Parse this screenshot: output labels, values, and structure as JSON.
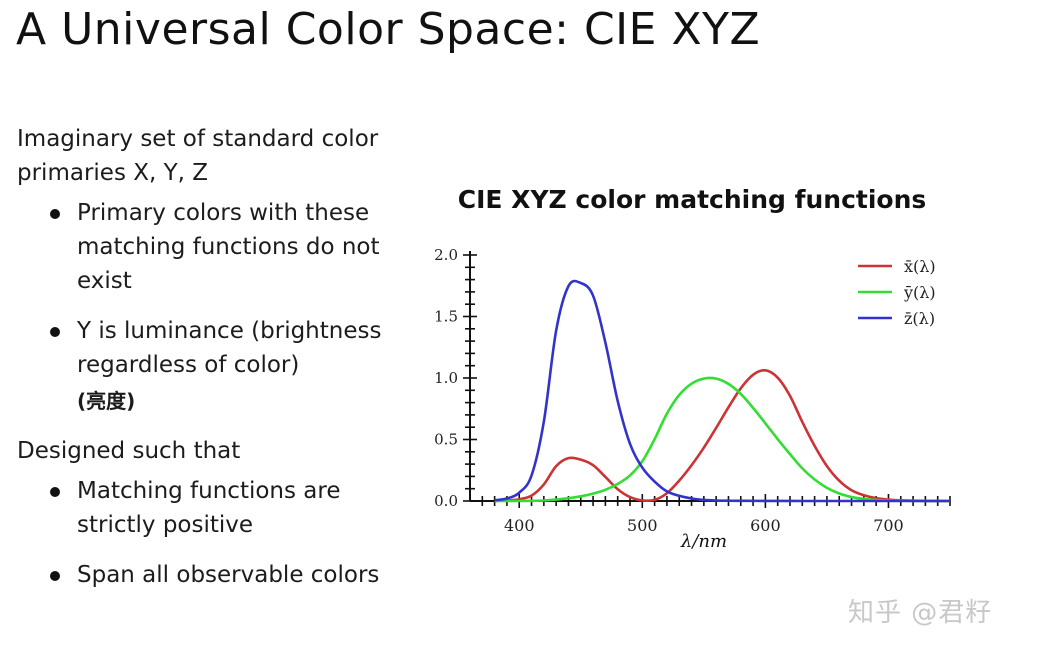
{
  "slide": {
    "title": "A Universal Color Space: CIE XYZ",
    "intro": "Imaginary set of standard color primaries X, Y, Z",
    "bullets_1": [
      {
        "text": "Primary colors with these matching functions do not exist",
        "sub": ""
      },
      {
        "text": "Y is luminance (brightness regardless of color)",
        "sub": "(亮度)"
      }
    ],
    "section_2": "Designed such that",
    "bullets_2": [
      {
        "text": "Matching functions are strictly positive"
      },
      {
        "text": "Span all observable colors"
      }
    ],
    "watermark": "知乎 @君籽"
  },
  "chart_data": {
    "type": "line",
    "title": "CIE XYZ color matching functions",
    "xlabel": "λ/nm",
    "ylabel": "",
    "xlim": [
      360,
      750
    ],
    "ylim": [
      0,
      2.0
    ],
    "xticks": [
      400,
      500,
      600,
      700
    ],
    "yticks": [
      0.0,
      0.5,
      1.0,
      1.5,
      2.0
    ],
    "legend_position": "top-right",
    "x": [
      380,
      390,
      400,
      410,
      420,
      430,
      440,
      450,
      460,
      470,
      480,
      490,
      500,
      510,
      520,
      530,
      540,
      550,
      560,
      570,
      580,
      590,
      600,
      610,
      620,
      630,
      640,
      650,
      660,
      670,
      680,
      690,
      700,
      710,
      720,
      730,
      740,
      750
    ],
    "series": [
      {
        "name": "x̄(λ)",
        "color": "#cc3333",
        "values": [
          0.0014,
          0.0042,
          0.0143,
          0.0435,
          0.1344,
          0.2839,
          0.3483,
          0.3362,
          0.2908,
          0.1954,
          0.0956,
          0.032,
          0.0049,
          0.0093,
          0.0633,
          0.1655,
          0.2904,
          0.4334,
          0.5945,
          0.7621,
          0.9163,
          1.0263,
          1.0622,
          1.0026,
          0.8544,
          0.6424,
          0.4479,
          0.2835,
          0.1649,
          0.0874,
          0.0468,
          0.0227,
          0.0114,
          0.0058,
          0.0029,
          0.0014,
          0.0007,
          0.0003
        ]
      },
      {
        "name": "ȳ(λ)",
        "color": "#33dd33",
        "values": [
          0.0,
          0.0001,
          0.0004,
          0.0012,
          0.004,
          0.0116,
          0.023,
          0.038,
          0.06,
          0.091,
          0.139,
          0.208,
          0.323,
          0.503,
          0.71,
          0.862,
          0.954,
          0.995,
          0.995,
          0.952,
          0.87,
          0.757,
          0.631,
          0.503,
          0.381,
          0.265,
          0.175,
          0.107,
          0.061,
          0.032,
          0.017,
          0.0082,
          0.0041,
          0.0021,
          0.001,
          0.0005,
          0.0003,
          0.0001
        ]
      },
      {
        "name": "z̄(λ)",
        "color": "#3333cc",
        "values": [
          0.0065,
          0.0201,
          0.0679,
          0.2074,
          0.6456,
          1.3856,
          1.7471,
          1.7721,
          1.6692,
          1.2876,
          0.813,
          0.4652,
          0.272,
          0.1582,
          0.0782,
          0.0422,
          0.0203,
          0.0087,
          0.0039,
          0.0021,
          0.0017,
          0.0011,
          0.0008,
          0.0003,
          0.0002,
          0.0,
          0.0,
          0.0,
          0.0,
          0.0,
          0.0,
          0.0,
          0.0,
          0.0,
          0.0,
          0.0,
          0.0,
          0.0
        ]
      }
    ]
  }
}
